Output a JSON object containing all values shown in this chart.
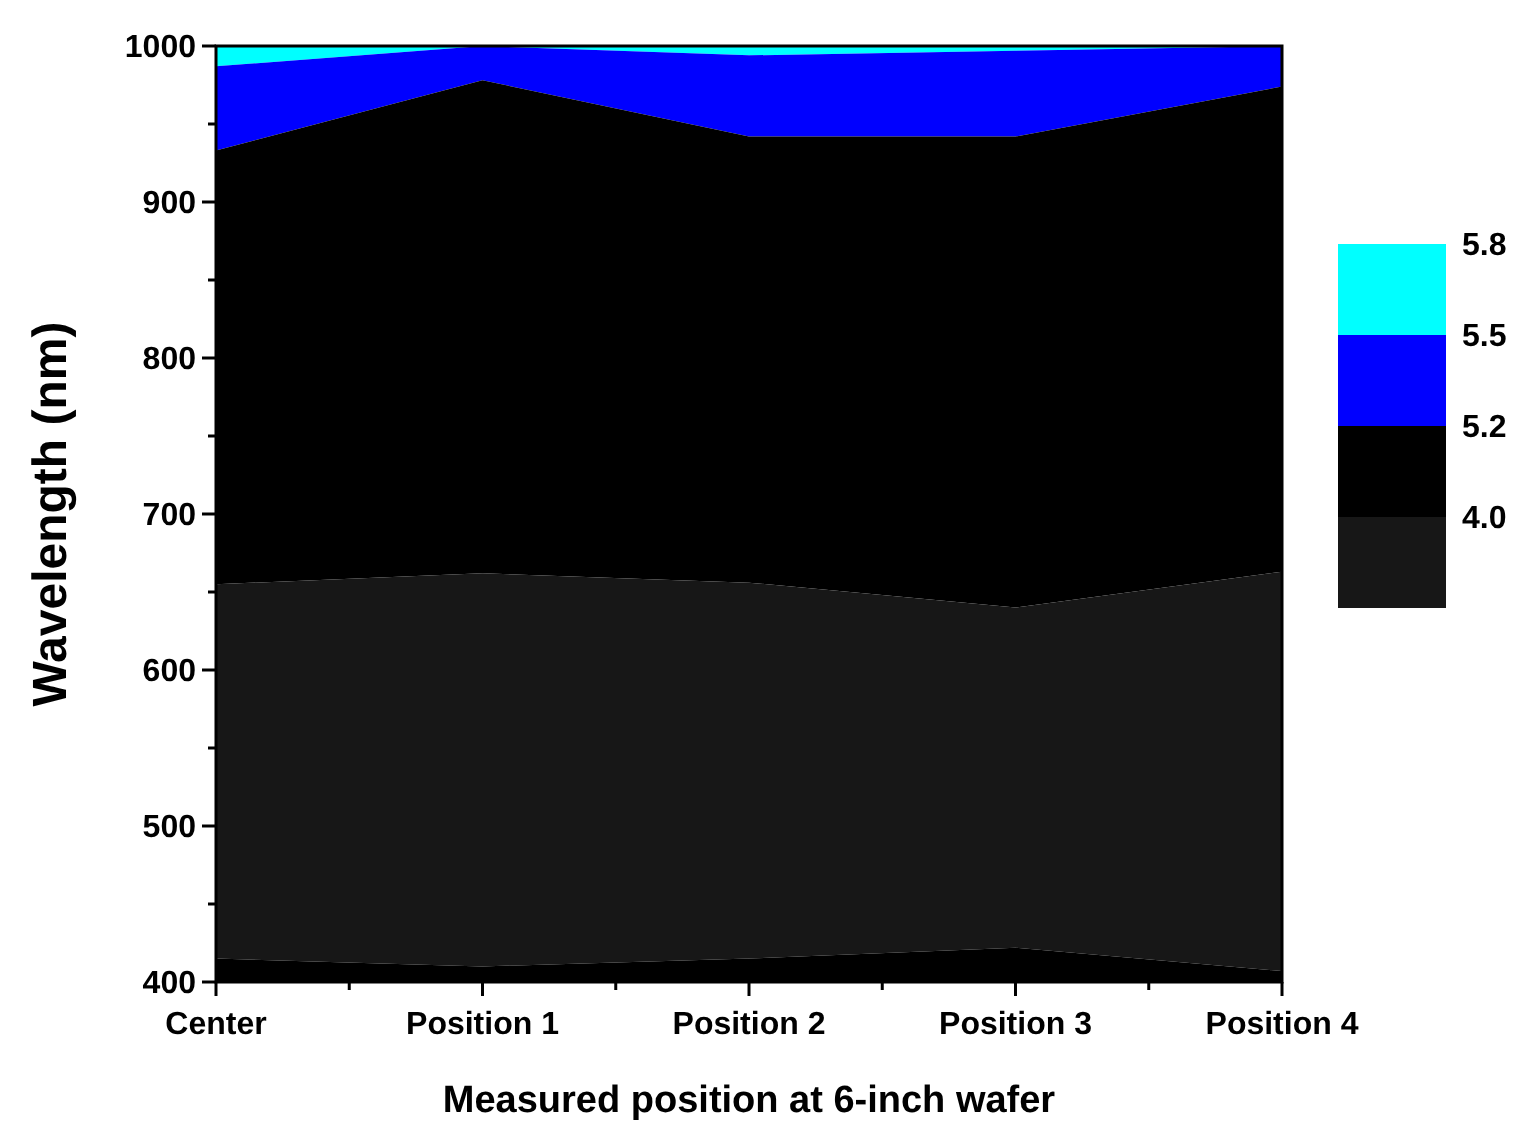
{
  "chart_data": {
    "type": "area",
    "xlabel": "Measured position at 6-inch wafer",
    "ylabel": "Wavelength (nm)",
    "categories": [
      "Center",
      "Position 1",
      "Position 2",
      "Position 3",
      "Position 4"
    ],
    "series": [
      {
        "color": "#000000",
        "values": [
          415,
          410,
          415,
          422,
          407
        ]
      },
      {
        "color": "#171717",
        "values": [
          655,
          662,
          656,
          640,
          663
        ]
      },
      {
        "color": "#000000",
        "values": [
          933,
          978,
          942,
          942,
          974
        ]
      },
      {
        "color": "#0000ff",
        "values": [
          987,
          1000,
          994,
          997,
          1000
        ]
      },
      {
        "color": "#00ffff",
        "values": [
          1000,
          1000,
          1000,
          1000,
          1000
        ]
      }
    ],
    "ylim": [
      400,
      1000
    ],
    "yticks": [
      400,
      {
        "value": 450,
        "label": null
      },
      500,
      {
        "value": 550,
        "label": null
      },
      600,
      {
        "value": 650,
        "label": null
      },
      700,
      {
        "value": 750,
        "label": null
      },
      800,
      {
        "value": 850,
        "label": null
      },
      900,
      {
        "value": 950,
        "label": null
      },
      1000
    ],
    "colors": [
      "#171717",
      "#000000",
      "#0000ff",
      "#00ffff"
    ],
    "annotations": [
      "4.0",
      "5.2",
      "5.5",
      "5.8"
    ],
    "grid": false
  }
}
